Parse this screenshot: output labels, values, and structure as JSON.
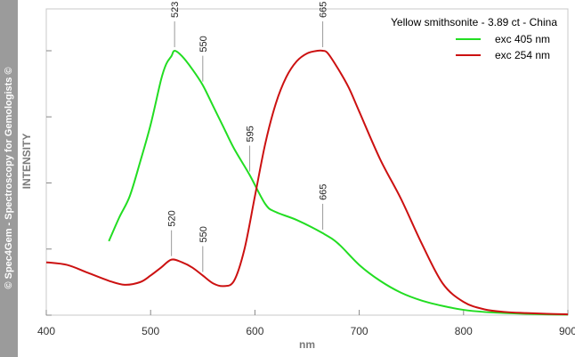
{
  "watermark": "© Spec4Gem - Spectroscopy for Gemologists ©",
  "chart_data": {
    "type": "line",
    "title": "Yellow smithsonite - 3.89 ct - China",
    "xlabel": "nm",
    "ylabel": "INTENSITY",
    "xlim": [
      400,
      900
    ],
    "ylim": [
      0,
      100
    ],
    "xticks": [
      400,
      500,
      600,
      700,
      800,
      900
    ],
    "grid": false,
    "legend_position": "top-right",
    "series": [
      {
        "name": "exc 405 nm",
        "color": "#22dd22",
        "x": [
          460,
          470,
          480,
          490,
          500,
          510,
          515,
          520,
          523,
          530,
          540,
          550,
          560,
          570,
          580,
          595,
          610,
          620,
          640,
          665,
          680,
          700,
          720,
          740,
          760,
          780,
          800,
          820,
          840,
          860,
          880,
          900
        ],
        "y": [
          28,
          37,
          45,
          58,
          72,
          89,
          95,
          98,
          100,
          98,
          93,
          87,
          79,
          71,
          63,
          53,
          42,
          39,
          36,
          31,
          27,
          19,
          13,
          8.5,
          5.5,
          3.5,
          2,
          1.2,
          0.8,
          0.5,
          0.3,
          0.2
        ]
      },
      {
        "name": "exc 254 nm",
        "color": "#cc1111",
        "x": [
          400,
          420,
          440,
          460,
          475,
          490,
          500,
          510,
          520,
          530,
          540,
          550,
          560,
          570,
          580,
          590,
          600,
          610,
          620,
          630,
          640,
          650,
          660,
          665,
          670,
          680,
          690,
          700,
          720,
          740,
          760,
          780,
          800,
          820,
          840,
          860,
          880,
          900
        ],
        "y": [
          20,
          19,
          16,
          13,
          11.5,
          12.5,
          15,
          18,
          21,
          20,
          18,
          15,
          12,
          11,
          13,
          25,
          45,
          65,
          80,
          90,
          96,
          99,
          100,
          100,
          99,
          93,
          86,
          77,
          59,
          44,
          27,
          12,
          5,
          2.2,
          1.2,
          0.8,
          0.5,
          0.3
        ]
      }
    ],
    "annotations": [
      {
        "x": 523,
        "y": 100,
        "label": "523"
      },
      {
        "x": 550,
        "y": 87,
        "label": "550"
      },
      {
        "x": 595,
        "y": 53,
        "label": "595"
      },
      {
        "x": 665,
        "y": 100,
        "label": "665"
      },
      {
        "x": 665,
        "y": 31,
        "label": "665"
      },
      {
        "x": 520,
        "y": 21,
        "label": "520"
      },
      {
        "x": 550,
        "y": 15,
        "label": "550"
      }
    ]
  }
}
